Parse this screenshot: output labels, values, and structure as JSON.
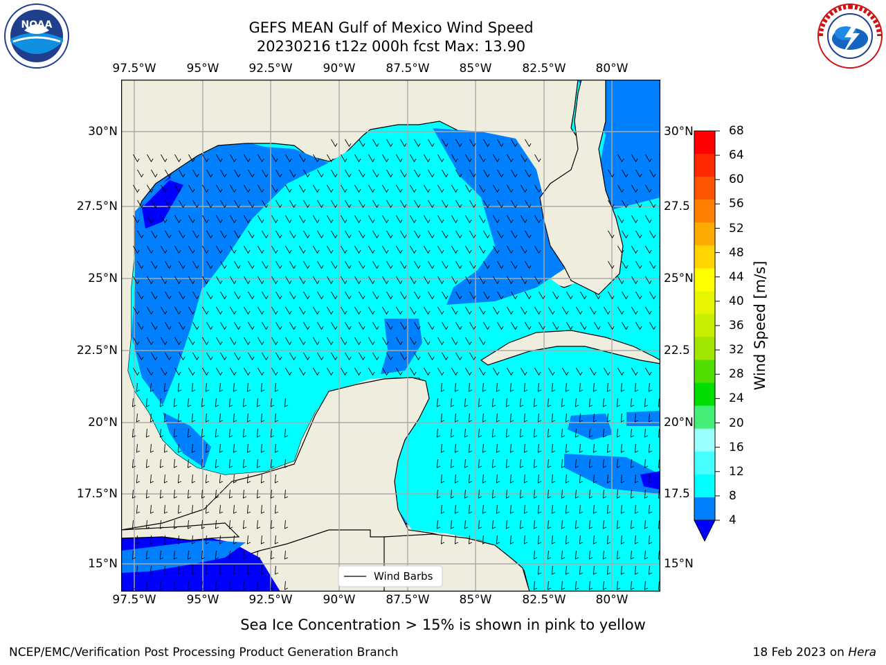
{
  "title": {
    "line1": "GEFS MEAN Gulf of Mexico Wind Speed",
    "line2": "20230216 t12z 000h fcst   Max: 13.90"
  },
  "axes": {
    "lon_labels": [
      "97.5°W",
      "95°W",
      "92.5°W",
      "90°W",
      "87.5°W",
      "85°W",
      "82.5°W",
      "80°W"
    ],
    "lat_labels_left": [
      "30°N",
      "27.5°N",
      "25°N",
      "22.5°N",
      "20°N",
      "17.5°N",
      "15°N"
    ],
    "lat_labels_right": [
      "30°N",
      "27.5",
      "25°N",
      "22.5",
      "20°N",
      "17.5",
      "15°N"
    ]
  },
  "legend": {
    "label": "Wind Barbs"
  },
  "colorbar": {
    "label": "Wind Speed [m/s]",
    "ticks": [
      "68",
      "64",
      "60",
      "56",
      "52",
      "48",
      "44",
      "40",
      "36",
      "32",
      "28",
      "24",
      "20",
      "16",
      "12",
      "8",
      "4"
    ],
    "colors": [
      "#ff0000",
      "#ff2a00",
      "#ff5500",
      "#ff8000",
      "#ffaa00",
      "#ffd400",
      "#ffff00",
      "#e6f500",
      "#c8ee00",
      "#a0e600",
      "#50dd00",
      "#00dd00",
      "#44ee77",
      "#9bffff",
      "#44ffff",
      "#00ffff",
      "#0080ff",
      "#0000ff"
    ]
  },
  "colors": {
    "land": "#efedde",
    "ocean_light": "#00ffff",
    "ocean_mid": "#0080ff",
    "ocean_dark": "#0000ff"
  },
  "footer": {
    "note": "Sea Ice Concentration > 15% is shown in pink to yellow",
    "credit": "NCEP/EMC/Verification Post Processing Product Generation Branch",
    "date_prefix": "18 Feb 2023 on ",
    "date_host": "Hera"
  },
  "logos": {
    "left_text": "NOAA",
    "right_text": "NATIONAL WEATHER SERVICE"
  }
}
